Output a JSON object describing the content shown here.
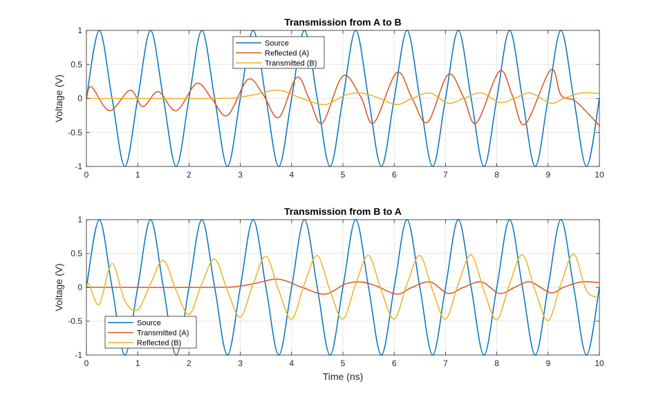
{
  "figure": {
    "background": "#ffffff"
  },
  "chart_data": [
    {
      "type": "line",
      "title": "Transmission from A to B",
      "xlabel": "",
      "ylabel": "Voltage (V)",
      "xlim": [
        0,
        10
      ],
      "ylim": [
        -1,
        1
      ],
      "xticks": [
        0,
        1,
        2,
        3,
        4,
        5,
        6,
        7,
        8,
        9,
        10
      ],
      "yticks": [
        -1,
        -0.5,
        0,
        0.5,
        1
      ],
      "grid": true,
      "legend_position": "top-center",
      "series": [
        {
          "name": "Source",
          "color": "#0072BD",
          "x": [
            0,
            0.25,
            0.5,
            0.75,
            1,
            1.25,
            1.5,
            1.75,
            2,
            2.25,
            2.5,
            2.75,
            3,
            3.25,
            3.5,
            3.75,
            4,
            4.25,
            4.5,
            4.75,
            5,
            5.25,
            5.5,
            5.75,
            6,
            6.25,
            6.5,
            6.75,
            7,
            7.25,
            7.5,
            7.75,
            8,
            8.25,
            8.5,
            8.75,
            9,
            9.25,
            9.5,
            9.75,
            10
          ],
          "y": [
            0,
            1,
            0,
            -1,
            0,
            1,
            0,
            -1,
            0,
            1,
            0,
            -1,
            0,
            1,
            0,
            -1,
            0,
            1,
            0,
            -1,
            0,
            1,
            0,
            -1,
            0,
            1,
            0,
            -1,
            0,
            1,
            0,
            -1,
            0,
            1,
            0,
            -1,
            0,
            1,
            0,
            -1,
            0
          ]
        },
        {
          "name": "Reflected (A)",
          "color": "#D95319",
          "x": [
            0,
            0.1,
            0.45,
            0.85,
            1.1,
            1.4,
            1.75,
            2.15,
            2.45,
            2.75,
            3.15,
            3.45,
            3.75,
            4.1,
            4.35,
            4.6,
            5.0,
            5.35,
            5.6,
            6.05,
            6.35,
            6.65,
            7.05,
            7.35,
            7.6,
            8.05,
            8.3,
            8.55,
            9.05,
            9.25,
            9.55,
            10
          ],
          "y": [
            0,
            0.17,
            -0.18,
            0.12,
            -0.12,
            0.1,
            -0.18,
            0.22,
            -0.01,
            -0.25,
            0.28,
            0.05,
            -0.28,
            0.31,
            -0.02,
            -0.36,
            0.33,
            0.02,
            -0.36,
            0.38,
            0.0,
            -0.35,
            0.35,
            0.02,
            -0.36,
            0.4,
            0.05,
            -0.38,
            0.42,
            0.05,
            -0.05,
            -0.4
          ]
        },
        {
          "name": "Transmitted (B)",
          "color": "#EDB120",
          "x": [
            0,
            2.5,
            3.0,
            3.3,
            3.75,
            4.2,
            4.65,
            5.05,
            5.35,
            5.65,
            6.05,
            6.35,
            6.7,
            7.05,
            7.35,
            7.7,
            8.05,
            8.35,
            8.65,
            9.05,
            9.3,
            9.65,
            10
          ],
          "y": [
            0,
            0,
            0.02,
            0.06,
            0.12,
            0.0,
            -0.09,
            0.05,
            0.08,
            0.02,
            -0.09,
            0.0,
            0.08,
            -0.07,
            0.0,
            0.08,
            -0.06,
            0.0,
            0.08,
            -0.07,
            0.0,
            0.08,
            0.07
          ]
        }
      ]
    },
    {
      "type": "line",
      "title": "Transmission from B to A",
      "xlabel": "Time (ns)",
      "ylabel": "Voltage (V)",
      "xlim": [
        0,
        10
      ],
      "ylim": [
        -1,
        1
      ],
      "xticks": [
        0,
        1,
        2,
        3,
        4,
        5,
        6,
        7,
        8,
        9,
        10
      ],
      "yticks": [
        -1,
        -0.5,
        0,
        0.5,
        1
      ],
      "grid": true,
      "legend_position": "bottom-left",
      "series": [
        {
          "name": "Source",
          "color": "#0072BD",
          "x": [
            0,
            0.25,
            0.5,
            0.75,
            1,
            1.25,
            1.5,
            1.75,
            2,
            2.25,
            2.5,
            2.75,
            3,
            3.25,
            3.5,
            3.75,
            4,
            4.25,
            4.5,
            4.75,
            5,
            5.25,
            5.5,
            5.75,
            6,
            6.25,
            6.5,
            6.75,
            7,
            7.25,
            7.5,
            7.75,
            8,
            8.25,
            8.5,
            8.75,
            9,
            9.25,
            9.5,
            9.75,
            10
          ],
          "y": [
            0,
            1,
            0,
            -1,
            0,
            1,
            0,
            -1,
            0,
            1,
            0,
            -1,
            0,
            1,
            0,
            -1,
            0,
            1,
            0,
            -1,
            0,
            1,
            0,
            -1,
            0,
            1,
            0,
            -1,
            0,
            1,
            0,
            -1,
            0,
            1,
            0,
            -1,
            0,
            1,
            0,
            -1,
            0
          ]
        },
        {
          "name": "Transmitted (A)",
          "color": "#D95319",
          "x": [
            0,
            2.5,
            3.0,
            3.3,
            3.75,
            4.2,
            4.65,
            5.05,
            5.35,
            5.65,
            6.05,
            6.35,
            6.7,
            7.05,
            7.35,
            7.7,
            8.05,
            8.35,
            8.65,
            9.05,
            9.3,
            9.65,
            10
          ],
          "y": [
            0,
            0,
            0.02,
            0.06,
            0.12,
            0.0,
            -0.1,
            0.05,
            0.08,
            0.02,
            -0.1,
            0.0,
            0.08,
            -0.09,
            0.0,
            0.08,
            -0.09,
            0.0,
            0.08,
            -0.08,
            0.0,
            0.08,
            0.07
          ]
        },
        {
          "name": "Reflected (B)",
          "color": "#EDB120",
          "x": [
            0,
            0.05,
            0.25,
            0.5,
            0.75,
            1.0,
            1.25,
            1.5,
            1.75,
            2.0,
            2.25,
            2.5,
            2.75,
            3.0,
            3.25,
            3.5,
            3.75,
            4.0,
            4.25,
            4.5,
            4.75,
            5.0,
            5.25,
            5.5,
            5.75,
            6.0,
            6.25,
            6.5,
            6.75,
            7.0,
            7.25,
            7.5,
            7.75,
            8.0,
            8.25,
            8.5,
            8.75,
            9.0,
            9.25,
            9.5,
            9.75,
            10
          ],
          "y": [
            0,
            0.05,
            -0.25,
            0.35,
            -0.2,
            -0.33,
            0.05,
            0.4,
            -0.05,
            -0.4,
            0.05,
            0.42,
            -0.05,
            -0.44,
            0.05,
            0.46,
            -0.05,
            -0.47,
            0.05,
            0.47,
            -0.05,
            -0.47,
            0.05,
            0.47,
            -0.05,
            -0.47,
            0.05,
            0.47,
            -0.05,
            -0.47,
            0.05,
            0.48,
            -0.05,
            -0.48,
            0.05,
            0.48,
            -0.05,
            -0.49,
            0.05,
            0.49,
            -0.05,
            -0.15
          ]
        }
      ]
    }
  ]
}
